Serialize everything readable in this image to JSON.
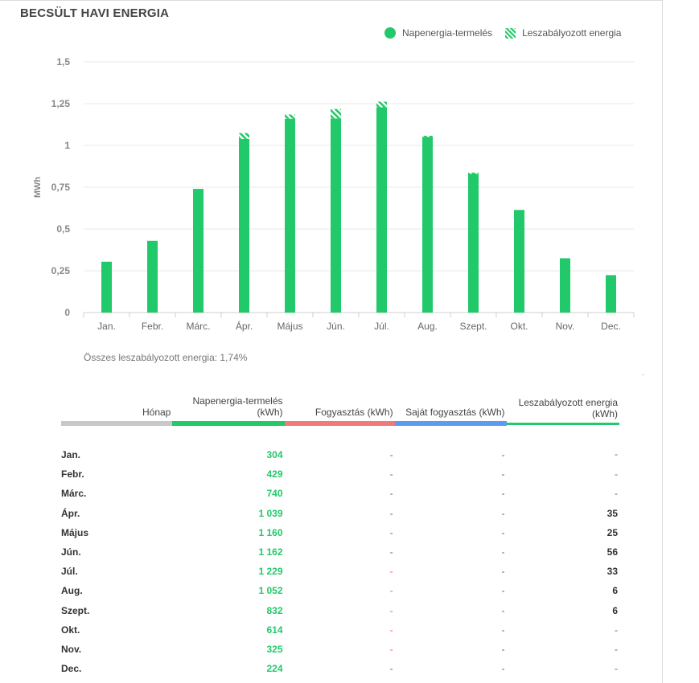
{
  "title": "BECSÜLT HAVI ENERGIA",
  "legend": {
    "production": "Napenergia-termelés",
    "curtailed": "Leszabályozott energia"
  },
  "colors": {
    "production": "#22c96a",
    "consumption": "#ef7a7a",
    "self_consumption": "#5b9cf0",
    "month_header": "#c8c8c8"
  },
  "chart_data": {
    "type": "bar",
    "stacked": true,
    "ylabel": "MWh",
    "ylim": [
      0,
      1.5
    ],
    "yticks": [
      0,
      0.25,
      0.5,
      0.75,
      1,
      1.25,
      1.5
    ],
    "ytick_labels": [
      "0",
      "0,25",
      "0,5",
      "0,75",
      "1",
      "1,25",
      "1,5"
    ],
    "categories": [
      "Jan.",
      "Febr.",
      "Márc.",
      "Ápr.",
      "Május",
      "Jún.",
      "Júl.",
      "Aug.",
      "Szept.",
      "Okt.",
      "Nov.",
      "Dec."
    ],
    "series": [
      {
        "name": "Napenergia-termelés",
        "values": [
          0.304,
          0.429,
          0.74,
          1.039,
          1.16,
          1.162,
          1.229,
          1.052,
          0.832,
          0.614,
          0.325,
          0.224
        ]
      },
      {
        "name": "Leszabályozott energia",
        "values": [
          0,
          0,
          0,
          0.035,
          0.025,
          0.056,
          0.033,
          0.006,
          0.006,
          0,
          0,
          0
        ]
      }
    ],
    "grid": true,
    "legend_position": "top-right"
  },
  "total_note": "Összes leszabályozott energia: 1,74%",
  "table": {
    "headers": {
      "month": "Hónap",
      "production_l1": "Napenergia-termelés",
      "production_l2": "(kWh)",
      "consumption": "Fogyasztás (kWh)",
      "self_consumption": "Saját fogyasztás (kWh)",
      "curtailed_l1": "Leszabályozott energia",
      "curtailed_l2": "(kWh)"
    },
    "rows": [
      {
        "month": "Jan.",
        "production": "304",
        "consumption": "-",
        "self": "-",
        "curtailed": "-"
      },
      {
        "month": "Febr.",
        "production": "429",
        "consumption": "-",
        "self": "-",
        "curtailed": "-"
      },
      {
        "month": "Márc.",
        "production": "740",
        "consumption": "-",
        "self": "-",
        "curtailed": "-"
      },
      {
        "month": "Ápr.",
        "production": "1 039",
        "consumption": "-",
        "self": "-",
        "curtailed": "35"
      },
      {
        "month": "Május",
        "production": "1 160",
        "consumption": "-",
        "self": "-",
        "curtailed": "25"
      },
      {
        "month": "Jún.",
        "production": "1 162",
        "consumption": "-",
        "self": "-",
        "curtailed": "56"
      },
      {
        "month": "Júl.",
        "production": "1 229",
        "consumption": "-",
        "self": "-",
        "curtailed": "33"
      },
      {
        "month": "Aug.",
        "production": "1 052",
        "consumption": "-",
        "self": "-",
        "curtailed": "6"
      },
      {
        "month": "Szept.",
        "production": "832",
        "consumption": "-",
        "self": "-",
        "curtailed": "6"
      },
      {
        "month": "Okt.",
        "production": "614",
        "consumption": "-",
        "self": "-",
        "curtailed": "-"
      },
      {
        "month": "Nov.",
        "production": "325",
        "consumption": "-",
        "self": "-",
        "curtailed": "-"
      },
      {
        "month": "Dec.",
        "production": "224",
        "consumption": "-",
        "self": "-",
        "curtailed": "-"
      }
    ]
  }
}
